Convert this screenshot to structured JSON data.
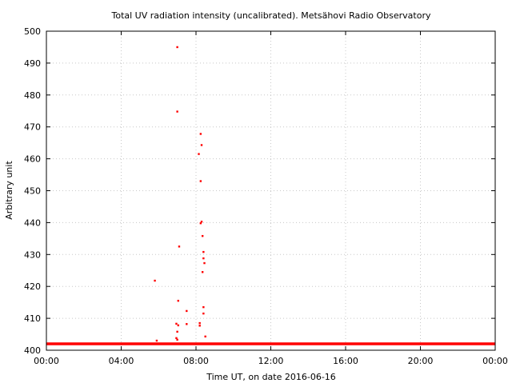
{
  "chart_data": {
    "type": "scatter",
    "title": "Total UV radiation intensity (uncalibrated). Metsähovi Radio Observatory",
    "xlabel": "Time UT, on date 2016-06-16",
    "ylabel": "Arbitrary unit",
    "ylim": [
      400,
      500
    ],
    "xlim_hours": [
      0,
      24
    ],
    "grid": true,
    "point_color": "#ff0000",
    "y_ticks": [
      "400",
      "410",
      "420",
      "430",
      "440",
      "450",
      "460",
      "470",
      "480",
      "490",
      "500"
    ],
    "y_tick_values": [
      400,
      410,
      420,
      430,
      440,
      450,
      460,
      470,
      480,
      490,
      500
    ],
    "x_ticks": [
      "00:00",
      "04:00",
      "08:00",
      "12:00",
      "16:00",
      "20:00",
      "00:00"
    ],
    "x_tick_values": [
      0,
      4,
      8,
      12,
      16,
      20,
      24
    ],
    "baseline": {
      "value": 402,
      "from_hour": 0,
      "to_hour": 24
    },
    "points": [
      {
        "x": 5.8,
        "y": 421.8
      },
      {
        "x": 5.9,
        "y": 403
      },
      {
        "x": 7.0,
        "y": 495
      },
      {
        "x": 7.0,
        "y": 474.8
      },
      {
        "x": 7.1,
        "y": 432.5
      },
      {
        "x": 7.05,
        "y": 415.5
      },
      {
        "x": 6.95,
        "y": 408.3
      },
      {
        "x": 7.05,
        "y": 407.8
      },
      {
        "x": 7.0,
        "y": 405.8
      },
      {
        "x": 6.95,
        "y": 403.8
      },
      {
        "x": 7.0,
        "y": 403.3
      },
      {
        "x": 7.5,
        "y": 412.3
      },
      {
        "x": 7.5,
        "y": 408.2
      },
      {
        "x": 8.2,
        "y": 408.5
      },
      {
        "x": 8.2,
        "y": 407.7
      },
      {
        "x": 8.15,
        "y": 461.5
      },
      {
        "x": 8.25,
        "y": 467.8
      },
      {
        "x": 8.3,
        "y": 464.3
      },
      {
        "x": 8.25,
        "y": 453
      },
      {
        "x": 8.3,
        "y": 440.3
      },
      {
        "x": 8.25,
        "y": 439.8
      },
      {
        "x": 8.35,
        "y": 435.8
      },
      {
        "x": 8.4,
        "y": 430.8
      },
      {
        "x": 8.4,
        "y": 428.8
      },
      {
        "x": 8.45,
        "y": 427.3
      },
      {
        "x": 8.35,
        "y": 424.5
      },
      {
        "x": 8.4,
        "y": 413.5
      },
      {
        "x": 8.4,
        "y": 411.5
      },
      {
        "x": 8.5,
        "y": 404.3
      }
    ]
  }
}
